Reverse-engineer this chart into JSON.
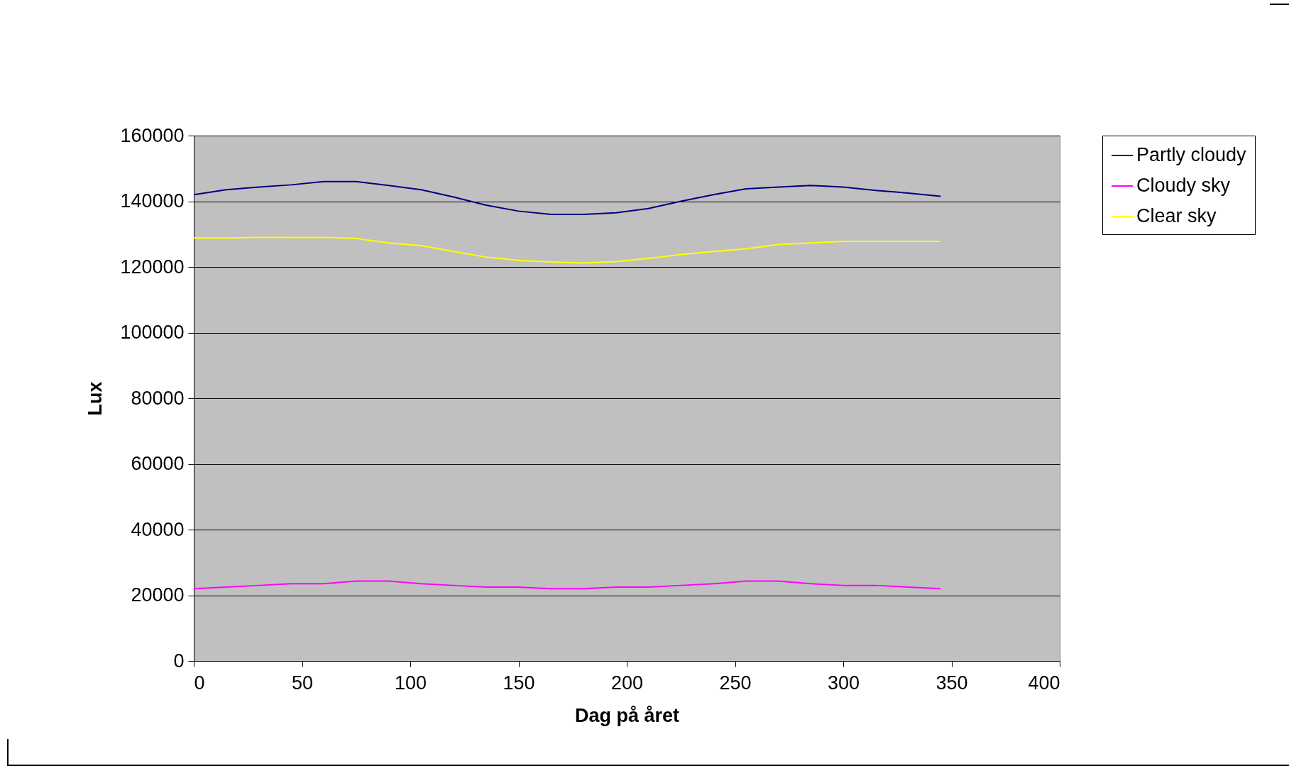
{
  "chart_data": {
    "type": "line",
    "xlabel": "Dag på året",
    "ylabel": "Lux",
    "x": [
      0,
      15,
      30,
      45,
      60,
      75,
      90,
      105,
      120,
      135,
      150,
      165,
      180,
      195,
      210,
      225,
      240,
      255,
      270,
      285,
      300,
      315,
      330,
      345
    ],
    "series": [
      {
        "name": "Partly cloudy",
        "color": "#000080",
        "values": [
          142000,
          143500,
          144300,
          145000,
          146000,
          146000,
          144800,
          143500,
          141300,
          138800,
          137000,
          136000,
          136000,
          136500,
          137800,
          140000,
          142000,
          143800,
          144300,
          144800,
          144300,
          143300,
          142500,
          141500
        ]
      },
      {
        "name": "Cloudy sky",
        "color": "#ff00ff",
        "values": [
          22000,
          22500,
          23000,
          23500,
          23500,
          24300,
          24300,
          23500,
          23000,
          22500,
          22500,
          22000,
          22000,
          22500,
          22500,
          23000,
          23500,
          24300,
          24300,
          23500,
          23000,
          23000,
          22500,
          22000
        ]
      },
      {
        "name": "Clear sky",
        "color": "#ffff00",
        "values": [
          128800,
          128800,
          129000,
          129000,
          129000,
          128700,
          127300,
          126500,
          124700,
          123000,
          122000,
          121500,
          121200,
          121600,
          122600,
          123800,
          124700,
          125500,
          126800,
          127300,
          127800,
          127800,
          127800,
          127800
        ]
      }
    ],
    "xlim": [
      0,
      400
    ],
    "xticks": [
      0,
      50,
      100,
      150,
      200,
      250,
      300,
      350,
      400
    ],
    "ylim": [
      0,
      160000
    ],
    "yticks": [
      0,
      20000,
      40000,
      60000,
      80000,
      100000,
      120000,
      140000,
      160000
    ],
    "grid": "y",
    "legend": "right",
    "marker": "none",
    "line_style": "solid"
  }
}
